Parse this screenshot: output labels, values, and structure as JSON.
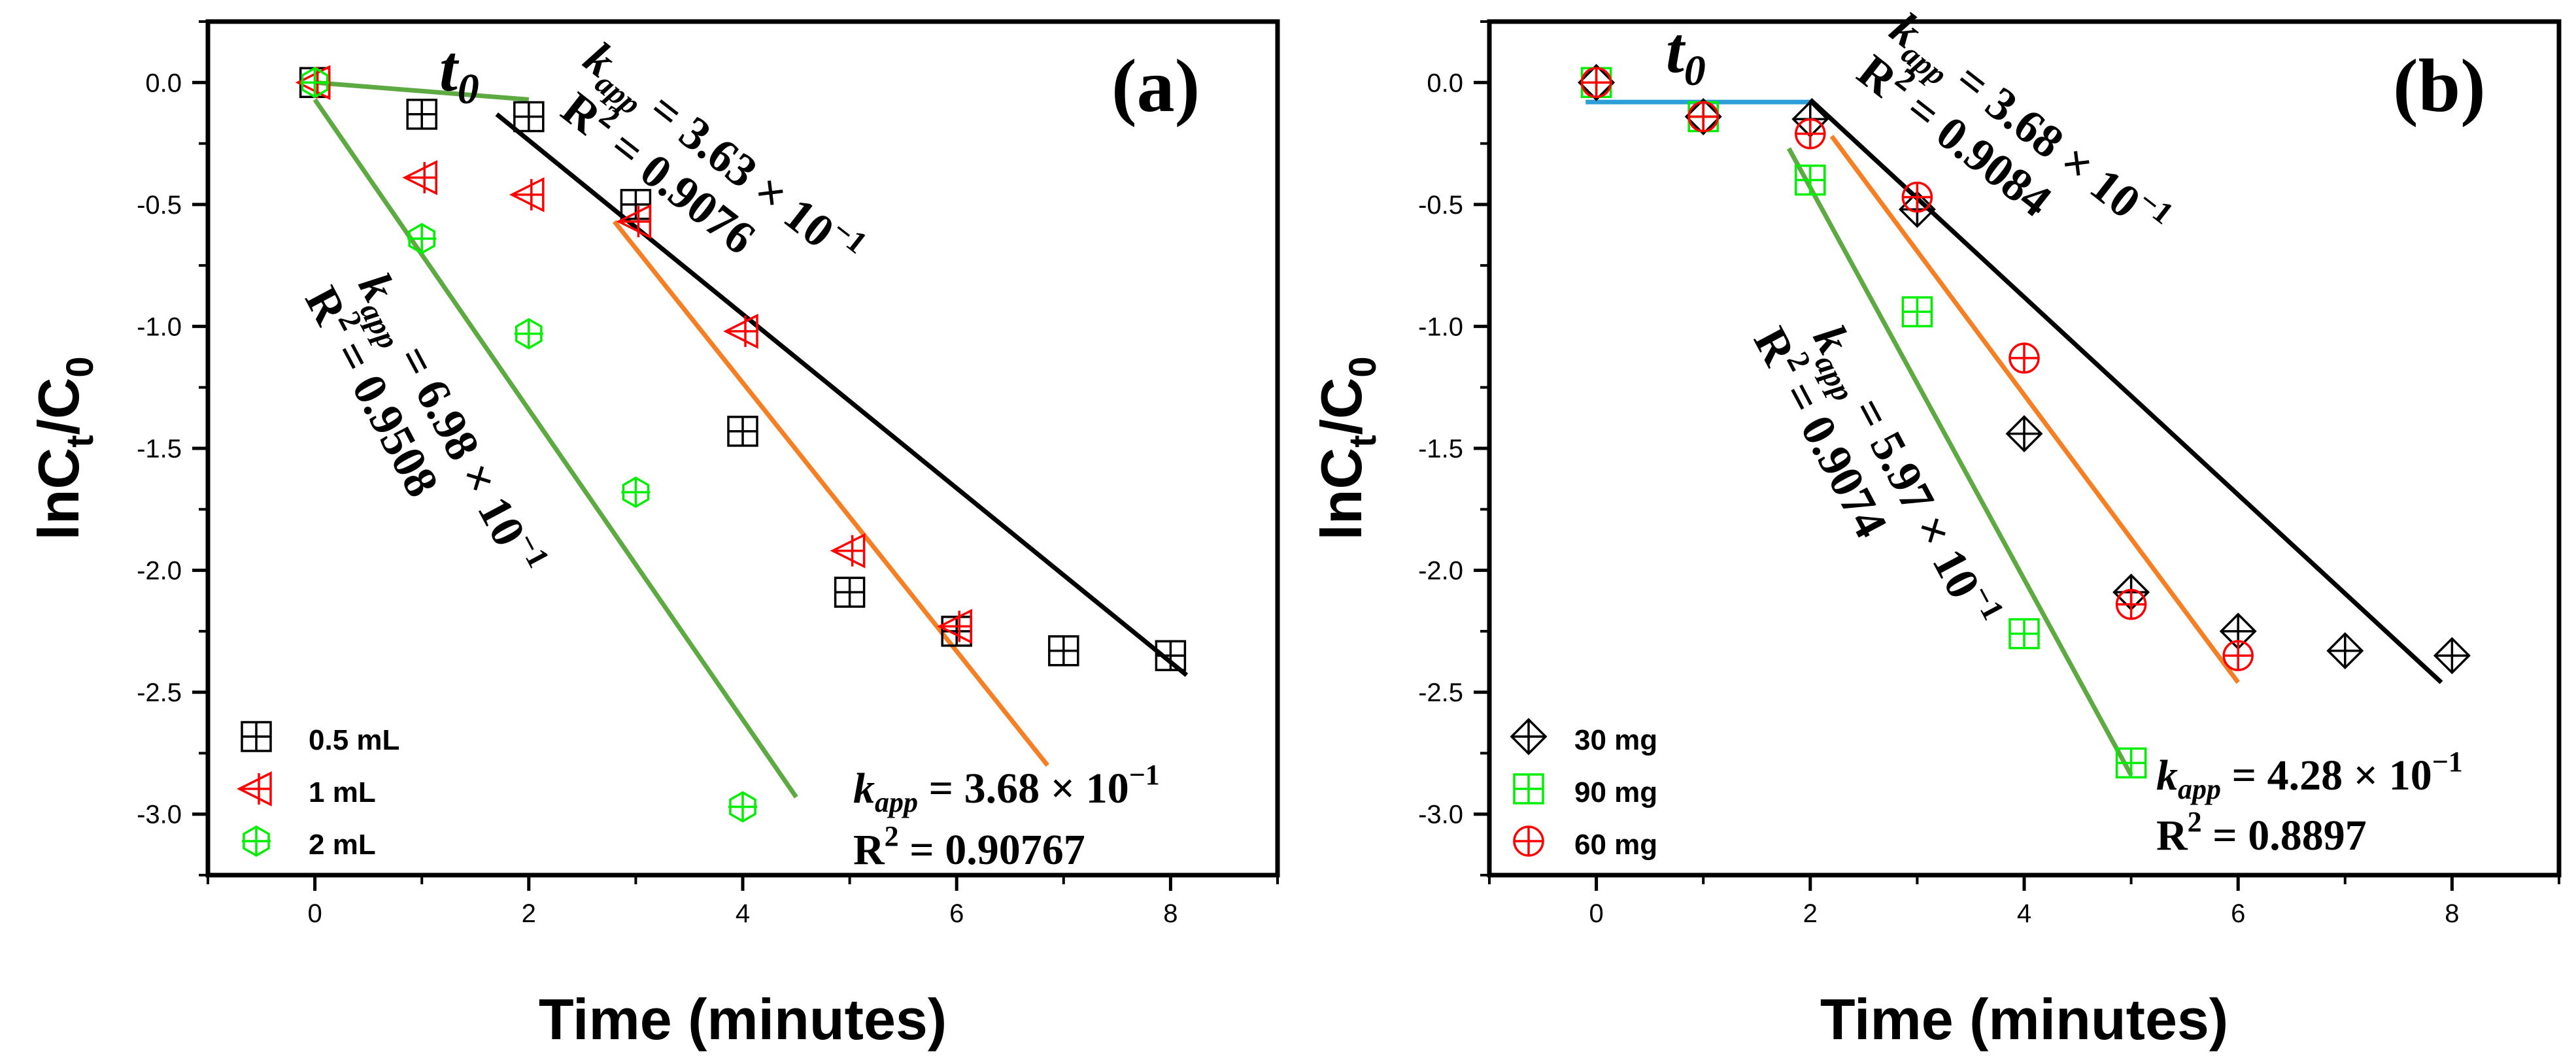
{
  "chart_data": [
    {
      "type": "scatter",
      "panel_label": "(a)",
      "xlabel": "Time (minutes)",
      "ylabel_main": "lnC",
      "ylabel_sub_1": "t",
      "ylabel_mid": "/C",
      "ylabel_sub_2": "0",
      "xlim": [
        -1,
        9
      ],
      "ylim": [
        -3.25,
        0.25
      ],
      "xticks": [
        0,
        2,
        4,
        6,
        8
      ],
      "yticks": [
        0.0,
        -0.5,
        -1.0,
        -1.5,
        -2.0,
        -2.5,
        -3.0
      ],
      "ytick_labels": [
        "0.0",
        "-0.5",
        "-1.0",
        "-1.5",
        "-2.0",
        "-2.5",
        "-3.0"
      ],
      "t0_label": "t",
      "t0_sub": "0",
      "series": [
        {
          "name": "0.5 mL",
          "marker": "square-plus",
          "color": "#000000",
          "x": [
            0,
            1,
            2,
            3,
            4,
            5,
            6,
            7,
            8
          ],
          "y": [
            0,
            -0.13,
            -0.14,
            -0.5,
            -1.43,
            -2.09,
            -2.25,
            -2.33,
            -2.35
          ]
        },
        {
          "name": "1 mL",
          "marker": "triangle-left-plus",
          "color": "#ff0000",
          "x": [
            0,
            1,
            2,
            3,
            4,
            5,
            6
          ],
          "y": [
            0,
            -0.39,
            -0.46,
            -0.57,
            -1.02,
            -1.92,
            -2.23
          ]
        },
        {
          "name": "2 mL",
          "marker": "hexagon-plus",
          "color": "#00ee00",
          "x": [
            0,
            1,
            2,
            3,
            4
          ],
          "y": [
            0,
            -0.64,
            -1.03,
            -1.68,
            -2.97
          ]
        }
      ],
      "fit_lines": [
        {
          "color": "#000000",
          "x": [
            1.7,
            8.15
          ],
          "y": [
            -0.13,
            -2.43
          ]
        },
        {
          "color": "#f57f25",
          "x": [
            2.8,
            6.85
          ],
          "y": [
            -0.57,
            -2.8
          ]
        },
        {
          "color": "#5daa43",
          "x": [
            0,
            4.5
          ],
          "y": [
            -0.07,
            -2.93
          ]
        },
        {
          "color": "#5daa43",
          "x": [
            0,
            2.0
          ],
          "y": [
            0,
            -0.07
          ]
        }
      ],
      "annotations": [
        {
          "k_sym": "k",
          "k_sub": "app",
          "k_rest": " = 3.63 × 10",
          "k_sup": "−1",
          "r2": "R",
          "r2_sup": "2",
          "r2_rest": " = 0.9076"
        },
        {
          "k_sym": "k",
          "k_sub": "app",
          "k_rest": " = 6.98 × 10",
          "k_sup": "−1",
          "r2": "R",
          "r2_sup": "2",
          "r2_rest": " = 0.9508"
        },
        {
          "k_sym": "k",
          "k_sub": "app",
          "k_rest": " = 3.68 × 10",
          "k_sup": "−1",
          "r2": "R",
          "r2_sup": "2",
          "r2_rest": " = 0.90767"
        }
      ],
      "legend_placement": "bottom-left"
    },
    {
      "type": "scatter",
      "panel_label": "(b)",
      "xlabel": "Time (minutes)",
      "ylabel_main": "lnC",
      "ylabel_sub_1": "t",
      "ylabel_mid": "/C",
      "ylabel_sub_2": "0",
      "xlim": [
        -1,
        9
      ],
      "ylim": [
        -3.25,
        0.25
      ],
      "xticks": [
        0,
        2,
        4,
        6,
        8
      ],
      "yticks": [
        0.0,
        -0.5,
        -1.0,
        -1.5,
        -2.0,
        -2.5,
        -3.0
      ],
      "ytick_labels": [
        "0.0",
        "-0.5",
        "-1.0",
        "-1.5",
        "-2.0",
        "-2.5",
        "-3.0"
      ],
      "t0_label": "t",
      "t0_sub": "0",
      "series": [
        {
          "name": "30 mg",
          "marker": "diamond-plus",
          "color": "#000000",
          "x": [
            0,
            1,
            2,
            3,
            4,
            5,
            6,
            7,
            8
          ],
          "y": [
            0,
            -0.14,
            -0.15,
            -0.52,
            -1.44,
            -2.09,
            -2.25,
            -2.33,
            -2.35
          ]
        },
        {
          "name": "90 mg",
          "marker": "square-plus",
          "color": "#00ee00",
          "x": [
            0,
            1,
            2,
            3,
            4,
            5
          ],
          "y": [
            0,
            -0.14,
            -0.4,
            -0.94,
            -2.26,
            -2.79
          ]
        },
        {
          "name": "60 mg",
          "marker": "circle-plus",
          "color": "#ff0000",
          "x": [
            0,
            1,
            2,
            3,
            4,
            5,
            6
          ],
          "y": [
            0,
            -0.14,
            -0.21,
            -0.47,
            -1.13,
            -2.14,
            -2.35
          ]
        }
      ],
      "fit_lines": [
        {
          "color": "#2c9fd9",
          "x": [
            -0.1,
            2.0
          ],
          "y": [
            -0.08,
            -0.08
          ]
        },
        {
          "color": "#000000",
          "x": [
            2.0,
            7.9
          ],
          "y": [
            -0.07,
            -2.46
          ]
        },
        {
          "color": "#f57f25",
          "x": [
            2.2,
            6.0
          ],
          "y": [
            -0.22,
            -2.46
          ]
        },
        {
          "color": "#5daa43",
          "x": [
            1.8,
            5.0
          ],
          "y": [
            -0.27,
            -2.84
          ]
        }
      ],
      "annotations": [
        {
          "k_sym": "k",
          "k_sub": "app",
          "k_rest": " = 3.68 × 10",
          "k_sup": "−1",
          "r2": "R",
          "r2_sup": "2",
          "r2_rest": " = 0.9084"
        },
        {
          "k_sym": "k",
          "k_sub": "app",
          "k_rest": " = 5.97 × 10",
          "k_sup": "−1",
          "r2": "R",
          "r2_sup": "2",
          "r2_rest": " = 0.9074"
        },
        {
          "k_sym": "k",
          "k_sub": "app",
          "k_rest": " = 4.28 × 10",
          "k_sup": "−1",
          "r2": "R",
          "r2_sup": "2",
          "r2_rest": " = 0.8897"
        }
      ],
      "legend_placement": "bottom-left"
    }
  ]
}
